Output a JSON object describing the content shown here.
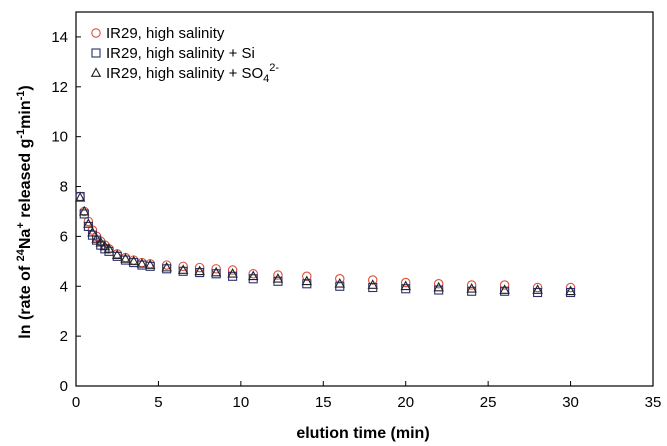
{
  "chart_data": {
    "type": "scatter",
    "xlabel": "elution time (min)",
    "ylabel": {
      "prefix": "ln (rate of ",
      "sup1": "24",
      "mid": "Na",
      "sup2": "+",
      "mid2": " released g",
      "sup3": "-1",
      "mid3": "min",
      "sup4": "-1",
      "suffix": ")"
    },
    "xlim": [
      0,
      35
    ],
    "ylim": [
      0,
      15
    ],
    "x_ticks": [
      0,
      5,
      10,
      15,
      20,
      25,
      30,
      35
    ],
    "y_ticks": [
      0,
      2,
      4,
      6,
      8,
      10,
      12,
      14
    ],
    "grid": false,
    "legend_position": "top-left",
    "series": [
      {
        "name": "IR29, high salinity",
        "label_parts": {
          "text": "IR29, high salinity",
          "sup": ""
        },
        "marker": "circle",
        "color": "#d9503c",
        "x": [
          0.25,
          0.5,
          0.75,
          1.0,
          1.25,
          1.5,
          1.75,
          2.0,
          2.5,
          3.0,
          3.5,
          4.0,
          4.5,
          5.5,
          6.5,
          7.5,
          8.5,
          9.5,
          10.75,
          12.25,
          14.0,
          16.0,
          18.0,
          20.0,
          22.0,
          24.0,
          26.0,
          28.0,
          30.0
        ],
        "y": [
          7.6,
          7.0,
          6.6,
          6.25,
          6.0,
          5.8,
          5.65,
          5.5,
          5.3,
          5.15,
          5.05,
          4.95,
          4.9,
          4.85,
          4.8,
          4.75,
          4.7,
          4.65,
          4.5,
          4.45,
          4.4,
          4.3,
          4.25,
          4.15,
          4.1,
          4.05,
          4.05,
          3.95,
          3.95
        ]
      },
      {
        "name": "IR29, high salinity + Si",
        "label_parts": {
          "text": "IR29, high salinity + Si",
          "sup": ""
        },
        "marker": "square",
        "color": "#2b2f6e",
        "x": [
          0.25,
          0.5,
          0.75,
          1.0,
          1.25,
          1.5,
          1.75,
          2.0,
          2.5,
          3.0,
          3.5,
          4.0,
          4.5,
          5.5,
          6.5,
          7.5,
          8.5,
          9.5,
          10.75,
          12.25,
          14.0,
          16.0,
          18.0,
          20.0,
          22.0,
          24.0,
          26.0,
          28.0,
          30.0
        ],
        "y": [
          7.6,
          6.9,
          6.4,
          6.05,
          5.85,
          5.65,
          5.5,
          5.4,
          5.2,
          5.05,
          4.95,
          4.85,
          4.8,
          4.7,
          4.6,
          4.55,
          4.5,
          4.4,
          4.3,
          4.2,
          4.1,
          4.0,
          3.95,
          3.9,
          3.85,
          3.8,
          3.8,
          3.75,
          3.75
        ]
      },
      {
        "name": "IR29, high salinity + SO42-",
        "label_parts": {
          "text": "IR29, high salinity + SO",
          "sub": "4",
          "sup": "2-"
        },
        "marker": "triangle",
        "color": "#222222",
        "x": [
          0.25,
          0.5,
          0.75,
          1.0,
          1.25,
          1.5,
          1.75,
          2.0,
          2.5,
          3.0,
          3.5,
          4.0,
          4.5,
          5.5,
          6.5,
          7.5,
          8.5,
          9.5,
          10.75,
          12.25,
          14.0,
          16.0,
          18.0,
          20.0,
          22.0,
          24.0,
          26.0,
          28.0,
          30.0
        ],
        "y": [
          7.55,
          7.0,
          6.5,
          6.15,
          5.9,
          5.75,
          5.6,
          5.5,
          5.25,
          5.1,
          5.0,
          4.9,
          4.85,
          4.75,
          4.65,
          4.6,
          4.55,
          4.5,
          4.4,
          4.3,
          4.2,
          4.1,
          4.05,
          4.0,
          3.95,
          3.9,
          3.85,
          3.85,
          3.8
        ]
      }
    ]
  }
}
